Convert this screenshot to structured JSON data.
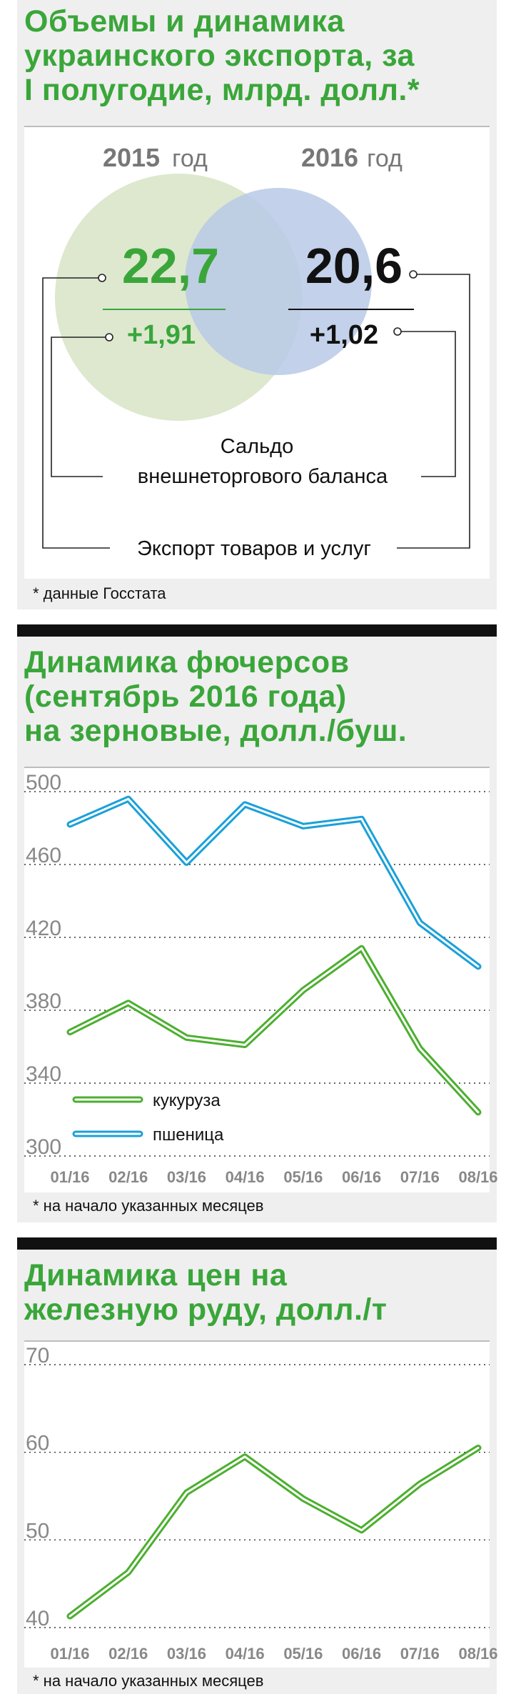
{
  "colors": {
    "accent_green": "#3aa63a",
    "circle_2015": "#dde8cf",
    "circle_2016": "#b9c9e6",
    "corn_line": "#4caf2f",
    "wheat_line": "#1aa0d8"
  },
  "export_panel": {
    "title_lines": [
      "Объемы и динамика",
      "украинского экспорта, за",
      "I полугодие, млрд. долл.*"
    ],
    "years": [
      {
        "year": "2015",
        "unit": "год",
        "export": "22,7",
        "balance": "+1,91"
      },
      {
        "year": "2016",
        "unit": "год",
        "export": "20,6",
        "balance": "+1,02"
      }
    ],
    "chart_data": {
      "type": "table",
      "title": "Объемы и динамика украинского экспорта, за I полугодие, млрд. долл.*",
      "columns": [
        "2015 год",
        "2016 год"
      ],
      "rows": [
        {
          "label": "Экспорт товаров и услуг",
          "values": [
            22.7,
            20.6
          ]
        },
        {
          "label": "Сальдо внешнеторгового баланса",
          "values": [
            1.91,
            1.02
          ]
        }
      ]
    },
    "balance_label_lines": [
      "Сальдо",
      "внешнеторгового баланса"
    ],
    "export_label": "Экспорт товаров и услуг",
    "footnote": "* данные Госстата"
  },
  "grain_panel": {
    "title_lines": [
      "Динамика фючерсов",
      "(сентябрь 2016 года)",
      "на зерновые, долл./буш."
    ],
    "legend": [
      {
        "name": "кукуруза",
        "color": "#4caf2f"
      },
      {
        "name": "пшеница",
        "color": "#1aa0d8"
      }
    ],
    "footnote": "* на начало указанных месяцев",
    "chart_data": {
      "type": "line",
      "title": "Динамика фючерсов (сентябрь 2016 года) на зерновые, долл./буш.",
      "categories": [
        "01/16",
        "02/16",
        "03/16",
        "04/16",
        "05/16",
        "06/16",
        "07/16",
        "08/16"
      ],
      "series": [
        {
          "name": "кукуруза",
          "values": [
            368,
            384,
            365,
            361,
            391,
            414,
            359,
            324
          ]
        },
        {
          "name": "пшеница",
          "values": [
            482,
            496,
            461,
            493,
            481,
            485,
            428,
            404
          ]
        }
      ],
      "ylim": [
        300,
        500
      ],
      "yticks": [
        "300",
        "340",
        "380",
        "420",
        "460",
        "500"
      ],
      "grid": true,
      "legend_position": "bottom-left"
    }
  },
  "ore_panel": {
    "title_lines": [
      "Динамика цен на",
      "железную руду, долл./т"
    ],
    "footnote": "* на начало указанных месяцев",
    "chart_data": {
      "type": "line",
      "title": "Динамика цен на железную руду, долл./т",
      "categories": [
        "01/16",
        "02/16",
        "03/16",
        "04/16",
        "05/16",
        "06/16",
        "07/16",
        "08/16"
      ],
      "series": [
        {
          "values": [
            41.3,
            46.3,
            55.4,
            59.5,
            54.7,
            51.1,
            56.4,
            60.5
          ]
        }
      ],
      "ylim": [
        40,
        70
      ],
      "yticks": [
        "40",
        "50",
        "60",
        "70"
      ],
      "grid": true
    }
  }
}
